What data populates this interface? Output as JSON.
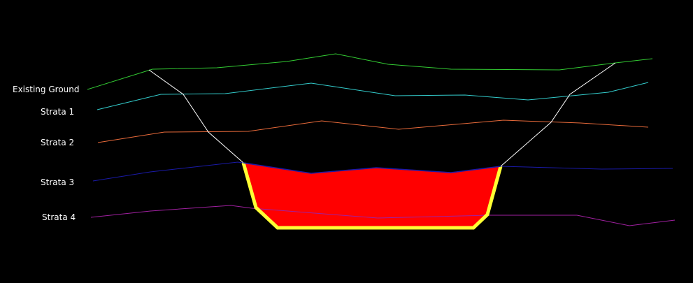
{
  "labels": {
    "existing_ground": "Existing Ground",
    "strata_1": "Strata 1",
    "strata_2": "Strata 2",
    "strata_3": "Strata 3",
    "strata_4": "Strata 4"
  },
  "colors": {
    "background": "#000000",
    "existing_ground": "#33cc33",
    "strata_1": "#33cccc",
    "strata_2": "#e86a3a",
    "strata_3": "#1a1aa8",
    "strata_4": "#a020a0",
    "excavation_fill": "#ff0000",
    "excavation_outline": "#ffff33",
    "daylight_line": "#ffffff"
  }
}
